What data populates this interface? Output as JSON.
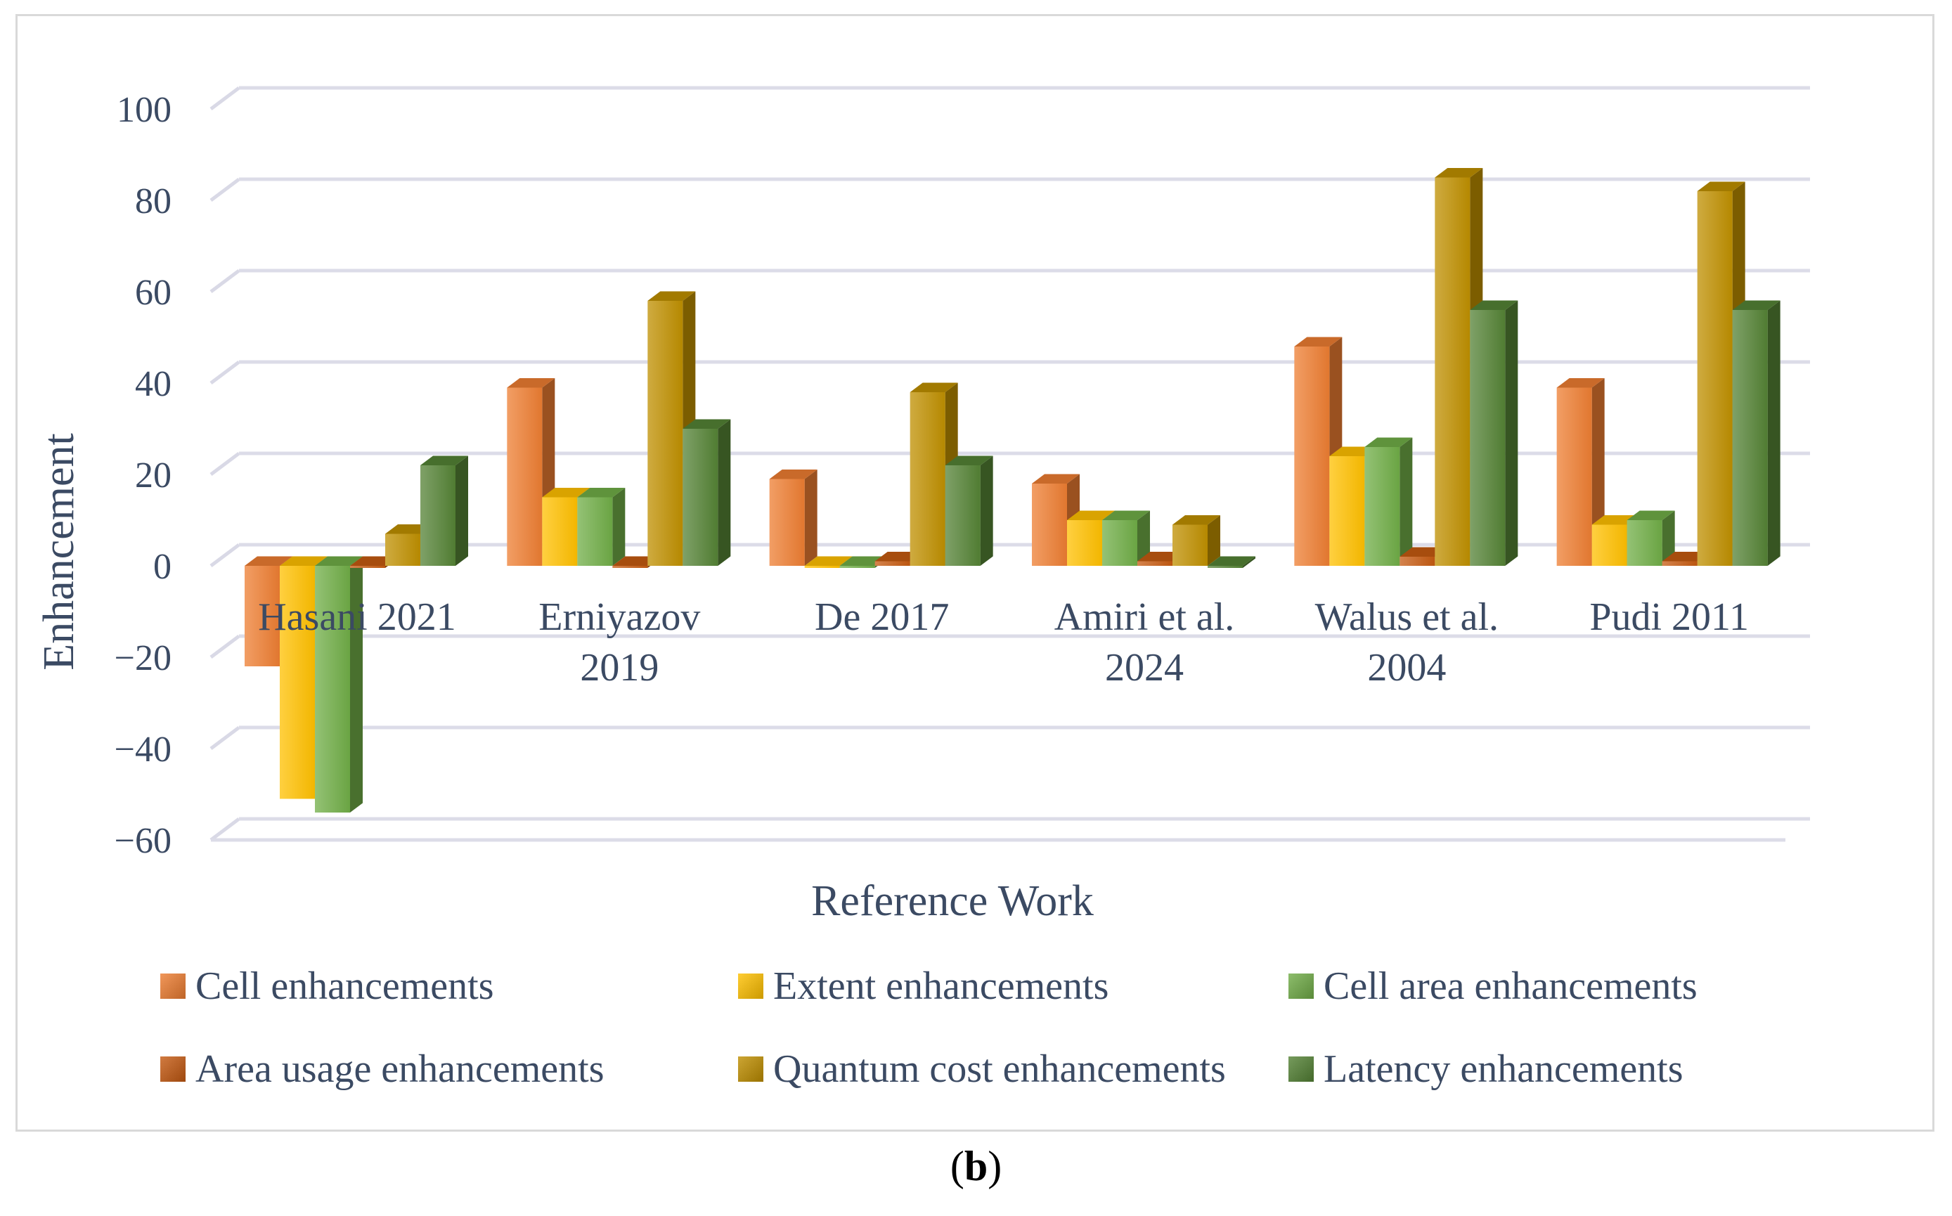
{
  "chart_data": {
    "type": "bar",
    "title": "",
    "xlabel": "Reference Work",
    "ylabel": "Enhancement",
    "ylim": [
      -60,
      100
    ],
    "yticks": [
      "100",
      "80",
      "60",
      "40",
      "20",
      "0",
      "−20",
      "−40",
      "−60"
    ],
    "ytick_values": [
      100,
      80,
      60,
      40,
      20,
      0,
      -20,
      -40,
      -60
    ],
    "grid": true,
    "categories": [
      [
        "Hasani 2021"
      ],
      [
        "Erniyazov",
        "2019"
      ],
      [
        "De 2017"
      ],
      [
        "Amiri et al.",
        "2024"
      ],
      [
        "Walus et al.",
        "2004"
      ],
      [
        "Pudi 2011"
      ]
    ],
    "series": [
      {
        "name": "Cell enhancements",
        "color": "#ed7d31",
        "values": [
          -22,
          39,
          19,
          18,
          48,
          39
        ]
      },
      {
        "name": "Extent enhancements",
        "color": "#ffc000",
        "values": [
          -51,
          15,
          0,
          10,
          24,
          9
        ]
      },
      {
        "name": "Cell area enhancements",
        "color": "#70ad47",
        "values": [
          -54,
          15,
          0,
          10,
          26,
          10
        ]
      },
      {
        "name": "Area usage enhancements",
        "color": "#c55a11",
        "values": [
          0,
          0,
          1,
          1,
          2,
          1
        ]
      },
      {
        "name": "Quantum cost enhancements",
        "color": "#bf8f00",
        "values": [
          7,
          58,
          38,
          9,
          85,
          82
        ]
      },
      {
        "name": "Latency enhancements",
        "color": "#548235",
        "values": [
          22,
          30,
          22,
          0,
          56,
          56
        ]
      }
    ],
    "legend_position": "bottom"
  },
  "caption": {
    "open": "(",
    "letter": "b",
    "close": ")"
  }
}
